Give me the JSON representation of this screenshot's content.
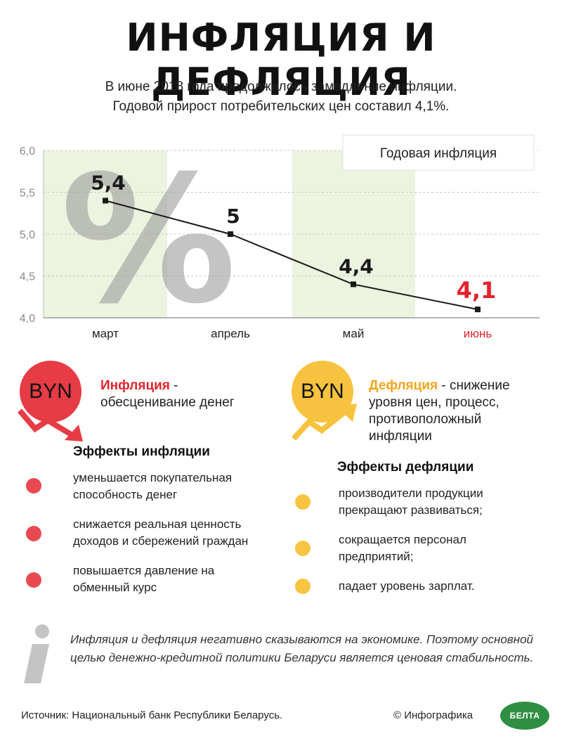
{
  "header": {
    "title": "ИНФЛЯЦИЯ И ДЕФЛЯЦИЯ",
    "subtitle_line1": "В июне 2018 года продолжилось замедление инфляции.",
    "subtitle_line2": "Годовой прирост потребительских цен составил 4,1%."
  },
  "chart_data": {
    "type": "line",
    "title": "Годовая инфляция",
    "categories": [
      "март",
      "апрель",
      "май",
      "июнь"
    ],
    "values": [
      5.4,
      5.0,
      4.4,
      4.1
    ],
    "value_labels": [
      "5,4",
      "5",
      "4,4",
      "4,1"
    ],
    "ylim": [
      4.0,
      6.0
    ],
    "yticks": [
      6.0,
      5.5,
      5.0,
      4.5,
      4.0
    ],
    "ytick_labels": [
      "6,0",
      "5,5",
      "5,0",
      "4,5",
      "4,0"
    ],
    "grid": true,
    "highlight_color": "#e2232d",
    "highlight_index": 3,
    "band_color": "#ecf3df",
    "percent_glyph": "%"
  },
  "inflation": {
    "badge": "BYN",
    "term": "Инфляция",
    "definition_rest": " -",
    "definition_line2": "обесценивание денег",
    "effects_title": "Эффекты инфляции",
    "effects": [
      [
        "уменьшается покупательная",
        "способность денег"
      ],
      [
        "снижается реальная ценность",
        "доходов и сбережений граждан"
      ],
      [
        "повышается давление на",
        "обменный курс"
      ]
    ],
    "color": "#e73b45"
  },
  "deflation": {
    "badge": "BYN",
    "term": "Дефляция",
    "definition_rest": " - снижение",
    "definition_line2": "уровня цен, процесс,",
    "definition_line3": "противоположный",
    "definition_line4": "инфляции",
    "effects_title": "Эффекты дефляции",
    "effects": [
      [
        "производители продукции",
        "прекращают развиваться;"
      ],
      [
        "сокращается персонал",
        "предприятий;"
      ],
      [
        "падает уровень зарплат.",
        ""
      ]
    ],
    "color": "#f7c23f"
  },
  "note": {
    "icon": "info-icon",
    "text": "Инфляция и дефляция негативно сказываются на экономике. Поэтому основной целью денежно-кредитной политики Беларуси является ценовая стабильность."
  },
  "footer": {
    "source": "Источник: Национальный банк Республики Беларусь.",
    "copyright": "© Инфографика",
    "logo_text": "БЕЛТА"
  }
}
